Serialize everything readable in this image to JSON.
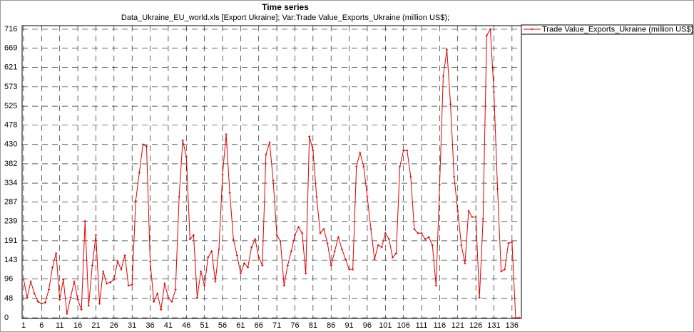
{
  "chart_data": {
    "type": "line",
    "title": "Time series",
    "subtitle": "Data_Ukraine_EU_world.xls [Export Ukraine];    Var:Trade Value_Exports_Ukraine (million US$);",
    "x": [
      1,
      2,
      3,
      4,
      5,
      6,
      7,
      8,
      9,
      10,
      11,
      12,
      13,
      14,
      15,
      16,
      17,
      18,
      19,
      20,
      21,
      22,
      23,
      24,
      25,
      26,
      27,
      28,
      29,
      30,
      31,
      32,
      33,
      34,
      35,
      36,
      37,
      38,
      39,
      40,
      41,
      42,
      43,
      44,
      45,
      46,
      47,
      48,
      49,
      50,
      51,
      52,
      53,
      54,
      55,
      56,
      57,
      58,
      59,
      60,
      61,
      62,
      63,
      64,
      65,
      66,
      67,
      68,
      69,
      70,
      71,
      72,
      73,
      74,
      75,
      76,
      77,
      78,
      79,
      80,
      81,
      82,
      83,
      84,
      85,
      86,
      87,
      88,
      89,
      90,
      91,
      92,
      93,
      94,
      95,
      96,
      97,
      98,
      99,
      100,
      101,
      102,
      103,
      104,
      105,
      106,
      107,
      108,
      109,
      110,
      111,
      112,
      113,
      114,
      115,
      116,
      117,
      118,
      119,
      120,
      121,
      122,
      123,
      124,
      125,
      126,
      127,
      128,
      129,
      130,
      131,
      132,
      133,
      134,
      135,
      136,
      137,
      138
    ],
    "series": [
      {
        "name": "Trade Value_Exports_Ukraine (million US$)",
        "color": "#e00000",
        "values": [
          96,
          50,
          90,
          60,
          40,
          35,
          38,
          70,
          125,
          160,
          45,
          95,
          10,
          50,
          90,
          45,
          20,
          240,
          30,
          130,
          205,
          35,
          115,
          85,
          88,
          95,
          140,
          120,
          155,
          80,
          82,
          290,
          360,
          430,
          425,
          140,
          40,
          60,
          20,
          85,
          50,
          40,
          70,
          300,
          440,
          400,
          195,
          205,
          50,
          115,
          80,
          150,
          165,
          90,
          170,
          355,
          455,
          310,
          195,
          155,
          110,
          135,
          125,
          175,
          195,
          150,
          130,
          405,
          435,
          340,
          205,
          190,
          80,
          130,
          165,
          205,
          225,
          210,
          110,
          450,
          415,
          300,
          210,
          220,
          185,
          130,
          165,
          200,
          170,
          145,
          120,
          120,
          375,
          410,
          375,
          300,
          220,
          145,
          180,
          175,
          210,
          195,
          150,
          160,
          375,
          415,
          415,
          350,
          220,
          210,
          210,
          195,
          200,
          180,
          80,
          330,
          600,
          665,
          530,
          350,
          265,
          180,
          135,
          265,
          250,
          250,
          50,
          245,
          700,
          716,
          560,
          320,
          115,
          120,
          185,
          188,
          0,
          0
        ]
      }
    ],
    "xlim": [
      1,
      138
    ],
    "ylim": [
      0,
      716
    ],
    "xticks": [
      1,
      6,
      11,
      16,
      21,
      26,
      31,
      36,
      41,
      46,
      51,
      56,
      61,
      66,
      71,
      76,
      81,
      86,
      91,
      96,
      101,
      106,
      111,
      116,
      121,
      126,
      131,
      136
    ],
    "yticks": [
      0,
      48,
      96,
      143,
      191,
      239,
      287,
      334,
      382,
      430,
      478,
      525,
      573,
      621,
      669,
      716
    ],
    "grid": true,
    "legend": "right"
  }
}
